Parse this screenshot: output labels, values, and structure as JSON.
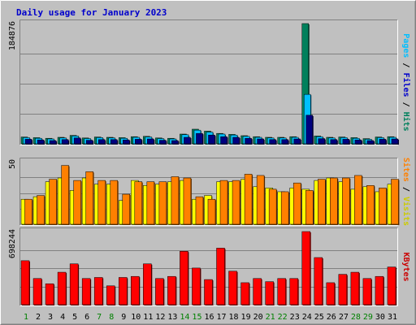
{
  "chart_data": {
    "type": "bar",
    "title": "Daily usage for January 2023",
    "categories": [
      "1",
      "2",
      "3",
      "4",
      "5",
      "6",
      "7",
      "8",
      "9",
      "10",
      "11",
      "12",
      "13",
      "14",
      "15",
      "16",
      "17",
      "18",
      "19",
      "20",
      "21",
      "22",
      "23",
      "24",
      "25",
      "26",
      "27",
      "28",
      "29",
      "30",
      "31"
    ],
    "weekend_days": [
      "1",
      "7",
      "8",
      "14",
      "15",
      "21",
      "22",
      "28",
      "29"
    ],
    "colors": {
      "background": "#c0c0c0",
      "plot_bg": "#c0c0c0",
      "title": "#0000cc",
      "hits": "#00805c",
      "files": "#00bfff",
      "pages": "#00007f",
      "visits": "#ffff00",
      "sites": "#ff8000",
      "kbytes": "#ff0000",
      "weekday_label": "#000000",
      "weekend_label": "#008000"
    },
    "panels": [
      {
        "id": "hits-files-pages",
        "max_label": "184876",
        "ylim": [
          0,
          184876
        ],
        "right_label": [
          {
            "text": "Pages",
            "color": "#00bfff"
          },
          {
            "text": " / ",
            "color": "#000000"
          },
          {
            "text": "Files",
            "color": "#0000cc"
          },
          {
            "text": " / ",
            "color": "#000000"
          },
          {
            "text": "Hits",
            "color": "#00805c"
          }
        ],
        "series": [
          {
            "name": "Hits",
            "values": [
              10500,
              9500,
              8500,
              10000,
              13000,
              9000,
              10500,
              10000,
              9500,
              11000,
              11500,
              9000,
              8500,
              15000,
              22500,
              19500,
              16000,
              14500,
              12500,
              11000,
              10000,
              10000,
              11000,
              184876,
              12000,
              10000,
              10500,
              9500,
              8000,
              10500,
              11000
            ]
          },
          {
            "name": "Files",
            "values": [
              9500,
              8500,
              7500,
              9000,
              12000,
              8000,
              9500,
              9000,
              8500,
              10000,
              10500,
              8000,
              7500,
              14000,
              21000,
              18000,
              15000,
              13500,
              11500,
              10000,
              9000,
              9000,
              10000,
              76000,
              11000,
              9000,
              9500,
              8500,
              7000,
              9500,
              10000
            ]
          },
          {
            "name": "Pages",
            "values": [
              7000,
              6000,
              5000,
              6500,
              9000,
              5500,
              6500,
              6500,
              6000,
              7000,
              7500,
              5500,
              5000,
              10000,
              16000,
              13500,
              11000,
              10000,
              8500,
              7500,
              6500,
              6500,
              7500,
              44000,
              8000,
              6500,
              7000,
              6000,
              5000,
              7000,
              7500
            ]
          }
        ]
      },
      {
        "id": "visits-sites",
        "max_label": "50",
        "ylim": [
          0,
          50
        ],
        "right_label": [
          {
            "text": "Sites",
            "color": "#ff8000"
          },
          {
            "text": " / ",
            "color": "#000000"
          },
          {
            "text": "Visits",
            "color": "#cccc00"
          }
        ],
        "series": [
          {
            "name": "Visits",
            "values": [
              20,
              22,
              34,
              37,
              27,
              37,
              32,
              32,
              19,
              35,
              31,
              32,
              34,
              35,
              20,
              23,
              34,
              34,
              36,
              30,
              29,
              26,
              29,
              28,
              35,
              37,
              34,
              28,
              30,
              26,
              32
            ]
          },
          {
            "name": "Sites",
            "values": [
              20,
              23,
              36,
              47,
              35,
              42,
              35,
              35,
              24,
              34,
              34,
              34,
              38,
              37,
              22,
              20,
              35,
              35,
              40,
              39,
              28,
              26,
              33,
              27,
              36,
              37,
              37,
              39,
              31,
              29,
              36
            ]
          }
        ]
      },
      {
        "id": "kbytes",
        "max_label": "698244",
        "ylim": [
          0,
          698244
        ],
        "right_label": [
          {
            "text": "KBytes",
            "color": "#cc0000"
          }
        ],
        "series": [
          {
            "name": "KBytes",
            "values": [
              420000,
              250000,
              200000,
              310000,
              390000,
              250000,
              260000,
              180000,
              260000,
              270000,
              390000,
              250000,
              270000,
              510000,
              350000,
              240000,
              540000,
              320000,
              210000,
              250000,
              220000,
              250000,
              250000,
              698244,
              450000,
              210000,
              290000,
              310000,
              250000,
              270000,
              360000
            ]
          }
        ]
      }
    ]
  }
}
